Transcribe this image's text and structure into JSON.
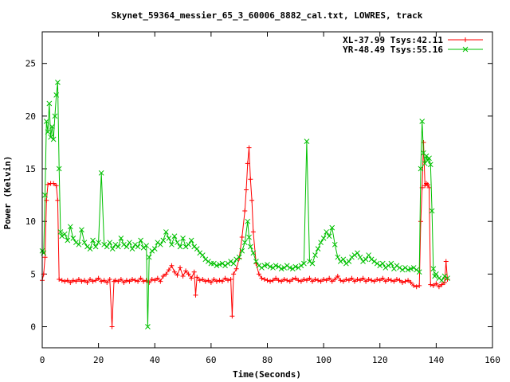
{
  "chart_data": {
    "type": "line",
    "title": "Skynet_59364_messier_65_3_60006_8882_cal.txt, LOWRES, track",
    "xlabel": "Time(Seconds)",
    "ylabel": "Power (Kelvin)",
    "xlim": [
      0,
      160
    ],
    "ylim": [
      -2,
      28
    ],
    "x_ticks": [
      0,
      20,
      40,
      60,
      80,
      100,
      120,
      140,
      160
    ],
    "y_ticks": [
      0,
      5,
      10,
      15,
      20,
      25
    ],
    "grid": false,
    "legend_position": "top-right",
    "series": [
      {
        "name": "XL-37.99 Tsys:42.11",
        "color": "#ff0000",
        "marker": "plus",
        "points": [
          [
            0.0,
            4.4
          ],
          [
            0.5,
            5.0
          ],
          [
            1.0,
            6.6
          ],
          [
            1.5,
            12.0
          ],
          [
            2.0,
            13.5
          ],
          [
            3.0,
            13.6
          ],
          [
            4.0,
            13.6
          ],
          [
            5.0,
            13.4
          ],
          [
            5.5,
            12.0
          ],
          [
            6.0,
            4.5
          ],
          [
            7,
            4.4
          ],
          [
            8,
            4.3
          ],
          [
            9,
            4.4
          ],
          [
            10,
            4.2
          ],
          [
            11,
            4.4
          ],
          [
            12,
            4.3
          ],
          [
            13,
            4.5
          ],
          [
            14,
            4.3
          ],
          [
            15,
            4.4
          ],
          [
            16,
            4.2
          ],
          [
            17,
            4.5
          ],
          [
            18,
            4.3
          ],
          [
            19,
            4.4
          ],
          [
            20,
            4.6
          ],
          [
            21,
            4.3
          ],
          [
            22,
            4.4
          ],
          [
            23,
            4.2
          ],
          [
            24,
            4.5
          ],
          [
            24.8,
            0.0
          ],
          [
            25.5,
            4.3
          ],
          [
            26,
            4.4
          ],
          [
            27,
            4.3
          ],
          [
            28,
            4.5
          ],
          [
            29,
            4.2
          ],
          [
            30,
            4.4
          ],
          [
            31,
            4.3
          ],
          [
            32,
            4.5
          ],
          [
            33,
            4.4
          ],
          [
            34,
            4.3
          ],
          [
            35,
            4.6
          ],
          [
            36,
            4.3
          ],
          [
            37,
            4.4
          ],
          [
            38,
            4.2
          ],
          [
            39,
            4.5
          ],
          [
            40,
            4.4
          ],
          [
            41,
            4.6
          ],
          [
            42,
            4.3
          ],
          [
            43,
            4.8
          ],
          [
            44,
            5.0
          ],
          [
            45,
            5.4
          ],
          [
            46,
            5.8
          ],
          [
            47,
            5.2
          ],
          [
            48,
            4.9
          ],
          [
            49,
            5.6
          ],
          [
            50,
            4.8
          ],
          [
            51,
            5.3
          ],
          [
            52,
            5.0
          ],
          [
            53,
            4.6
          ],
          [
            54,
            5.2
          ],
          [
            54.5,
            3.0
          ],
          [
            55,
            4.7
          ],
          [
            56,
            4.4
          ],
          [
            57,
            4.5
          ],
          [
            58,
            4.3
          ],
          [
            59,
            4.4
          ],
          [
            60,
            4.2
          ],
          [
            61,
            4.5
          ],
          [
            62,
            4.3
          ],
          [
            63,
            4.4
          ],
          [
            64,
            4.3
          ],
          [
            65,
            4.6
          ],
          [
            66,
            4.4
          ],
          [
            67,
            4.5
          ],
          [
            67.5,
            1.0
          ],
          [
            68,
            5.0
          ],
          [
            69,
            5.5
          ],
          [
            70,
            6.5
          ],
          [
            71,
            8.5
          ],
          [
            72,
            11.0
          ],
          [
            72.5,
            13.0
          ],
          [
            73,
            15.5
          ],
          [
            73.5,
            17.0
          ],
          [
            74,
            14.0
          ],
          [
            74.5,
            12.0
          ],
          [
            75,
            9.0
          ],
          [
            76,
            6.0
          ],
          [
            77,
            5.0
          ],
          [
            78,
            4.6
          ],
          [
            79,
            4.5
          ],
          [
            80,
            4.4
          ],
          [
            81,
            4.3
          ],
          [
            82,
            4.4
          ],
          [
            83,
            4.6
          ],
          [
            84,
            4.4
          ],
          [
            85,
            4.3
          ],
          [
            86,
            4.5
          ],
          [
            87,
            4.4
          ],
          [
            88,
            4.3
          ],
          [
            89,
            4.5
          ],
          [
            90,
            4.6
          ],
          [
            91,
            4.4
          ],
          [
            92,
            4.3
          ],
          [
            93,
            4.5
          ],
          [
            94,
            4.4
          ],
          [
            95,
            4.6
          ],
          [
            96,
            4.3
          ],
          [
            97,
            4.5
          ],
          [
            98,
            4.4
          ],
          [
            99,
            4.3
          ],
          [
            100,
            4.5
          ],
          [
            101,
            4.4
          ],
          [
            102,
            4.6
          ],
          [
            103,
            4.3
          ],
          [
            104,
            4.5
          ],
          [
            105,
            4.8
          ],
          [
            106,
            4.4
          ],
          [
            107,
            4.3
          ],
          [
            108,
            4.5
          ],
          [
            109,
            4.4
          ],
          [
            110,
            4.6
          ],
          [
            111,
            4.3
          ],
          [
            112,
            4.5
          ],
          [
            113,
            4.4
          ],
          [
            114,
            4.6
          ],
          [
            115,
            4.3
          ],
          [
            116,
            4.5
          ],
          [
            117,
            4.4
          ],
          [
            118,
            4.3
          ],
          [
            119,
            4.5
          ],
          [
            120,
            4.4
          ],
          [
            121,
            4.6
          ],
          [
            122,
            4.3
          ],
          [
            123,
            4.5
          ],
          [
            124,
            4.4
          ],
          [
            125,
            4.3
          ],
          [
            126,
            4.5
          ],
          [
            127,
            4.4
          ],
          [
            128,
            4.2
          ],
          [
            129,
            4.3
          ],
          [
            130,
            4.4
          ],
          [
            131,
            4.2
          ],
          [
            132,
            3.9
          ],
          [
            133,
            3.8
          ],
          [
            134,
            3.9
          ],
          [
            134.5,
            10.0
          ],
          [
            135,
            13.2
          ],
          [
            135.5,
            17.5
          ],
          [
            136,
            13.4
          ],
          [
            136.5,
            13.6
          ],
          [
            137,
            13.5
          ],
          [
            137.5,
            13.2
          ],
          [
            138,
            4.0
          ],
          [
            139,
            3.9
          ],
          [
            140,
            4.1
          ],
          [
            141,
            3.8
          ],
          [
            142,
            4.0
          ],
          [
            143,
            4.2
          ],
          [
            143.5,
            6.2
          ],
          [
            144,
            4.5
          ]
        ]
      },
      {
        "name": "YR-48.49 Tsys:55.16",
        "color": "#00c000",
        "marker": "cross",
        "points": [
          [
            0.0,
            7.2
          ],
          [
            0.5,
            7.0
          ],
          [
            1.0,
            12.5
          ],
          [
            1.5,
            19.5
          ],
          [
            2.0,
            18.5
          ],
          [
            2.5,
            21.2
          ],
          [
            3.0,
            18.0
          ],
          [
            3.5,
            19.0
          ],
          [
            4.0,
            17.8
          ],
          [
            4.5,
            20.0
          ],
          [
            5.0,
            22.0
          ],
          [
            5.5,
            23.2
          ],
          [
            6.0,
            15.0
          ],
          [
            6.5,
            9.0
          ],
          [
            7,
            8.6
          ],
          [
            8,
            8.8
          ],
          [
            9,
            8.2
          ],
          [
            10,
            9.5
          ],
          [
            11,
            8.4
          ],
          [
            12,
            8.0
          ],
          [
            13,
            7.8
          ],
          [
            14,
            9.2
          ],
          [
            15,
            8.0
          ],
          [
            16,
            7.6
          ],
          [
            17,
            7.4
          ],
          [
            18,
            8.2
          ],
          [
            19,
            7.6
          ],
          [
            20,
            8.0
          ],
          [
            21,
            14.6
          ],
          [
            22,
            7.8
          ],
          [
            23,
            7.6
          ],
          [
            24,
            8.0
          ],
          [
            25,
            7.4
          ],
          [
            26,
            7.8
          ],
          [
            27,
            7.6
          ],
          [
            28,
            8.4
          ],
          [
            29,
            7.8
          ],
          [
            30,
            7.6
          ],
          [
            31,
            8.0
          ],
          [
            32,
            7.4
          ],
          [
            33,
            7.8
          ],
          [
            34,
            7.6
          ],
          [
            35,
            8.2
          ],
          [
            36,
            7.5
          ],
          [
            37,
            7.7
          ],
          [
            37.5,
            0.0
          ],
          [
            38,
            6.6
          ],
          [
            39,
            7.2
          ],
          [
            40,
            7.4
          ],
          [
            41,
            8.0
          ],
          [
            42,
            7.8
          ],
          [
            43,
            8.2
          ],
          [
            44,
            9.0
          ],
          [
            45,
            8.4
          ],
          [
            46,
            7.8
          ],
          [
            47,
            8.6
          ],
          [
            48,
            8.0
          ],
          [
            49,
            7.6
          ],
          [
            50,
            8.4
          ],
          [
            51,
            7.6
          ],
          [
            52,
            7.8
          ],
          [
            53,
            8.2
          ],
          [
            54,
            7.6
          ],
          [
            55,
            7.4
          ],
          [
            56,
            7.0
          ],
          [
            57,
            6.8
          ],
          [
            58,
            6.4
          ],
          [
            59,
            6.2
          ],
          [
            60,
            6.0
          ],
          [
            61,
            6.0
          ],
          [
            62,
            5.8
          ],
          [
            63,
            5.9
          ],
          [
            64,
            6.0
          ],
          [
            65,
            5.8
          ],
          [
            66,
            6.0
          ],
          [
            67,
            6.2
          ],
          [
            68,
            6.0
          ],
          [
            69,
            6.4
          ],
          [
            70,
            6.6
          ],
          [
            71,
            7.2
          ],
          [
            72,
            8.0
          ],
          [
            73,
            10.0
          ],
          [
            73.5,
            8.5
          ],
          [
            74,
            7.6
          ],
          [
            75,
            7.0
          ],
          [
            76,
            6.2
          ],
          [
            77,
            5.8
          ],
          [
            78,
            5.6
          ],
          [
            79,
            5.8
          ],
          [
            80,
            5.9
          ],
          [
            81,
            5.7
          ],
          [
            82,
            5.6
          ],
          [
            83,
            5.8
          ],
          [
            84,
            5.7
          ],
          [
            85,
            5.5
          ],
          [
            86,
            5.6
          ],
          [
            87,
            5.8
          ],
          [
            88,
            5.6
          ],
          [
            89,
            5.5
          ],
          [
            90,
            5.7
          ],
          [
            91,
            5.6
          ],
          [
            92,
            5.8
          ],
          [
            93,
            6.0
          ],
          [
            94,
            17.6
          ],
          [
            95,
            6.2
          ],
          [
            96,
            6.0
          ],
          [
            97,
            6.8
          ],
          [
            98,
            7.4
          ],
          [
            99,
            8.0
          ],
          [
            100,
            8.4
          ],
          [
            101,
            9.0
          ],
          [
            102,
            8.6
          ],
          [
            103,
            9.4
          ],
          [
            104,
            7.8
          ],
          [
            105,
            6.6
          ],
          [
            106,
            6.2
          ],
          [
            107,
            6.4
          ],
          [
            108,
            6.0
          ],
          [
            109,
            6.2
          ],
          [
            110,
            6.6
          ],
          [
            111,
            6.8
          ],
          [
            112,
            7.0
          ],
          [
            113,
            6.6
          ],
          [
            114,
            6.2
          ],
          [
            115,
            6.4
          ],
          [
            116,
            6.8
          ],
          [
            117,
            6.4
          ],
          [
            118,
            6.2
          ],
          [
            119,
            6.0
          ],
          [
            120,
            5.8
          ],
          [
            121,
            6.0
          ],
          [
            122,
            5.6
          ],
          [
            123,
            5.8
          ],
          [
            124,
            6.0
          ],
          [
            125,
            5.5
          ],
          [
            126,
            5.8
          ],
          [
            127,
            5.6
          ],
          [
            128,
            5.4
          ],
          [
            129,
            5.6
          ],
          [
            130,
            5.4
          ],
          [
            131,
            5.5
          ],
          [
            132,
            5.6
          ],
          [
            133,
            5.4
          ],
          [
            134,
            5.2
          ],
          [
            134.5,
            15.0
          ],
          [
            135,
            19.5
          ],
          [
            135.5,
            16.5
          ],
          [
            136,
            15.5
          ],
          [
            136.5,
            16.2
          ],
          [
            137,
            15.8
          ],
          [
            137.5,
            16.0
          ],
          [
            138,
            15.4
          ],
          [
            138.5,
            11.0
          ],
          [
            139,
            5.5
          ],
          [
            139.5,
            4.8
          ],
          [
            140,
            5.0
          ],
          [
            141,
            4.6
          ],
          [
            142,
            4.4
          ],
          [
            143,
            4.8
          ],
          [
            144,
            4.6
          ]
        ]
      }
    ]
  }
}
